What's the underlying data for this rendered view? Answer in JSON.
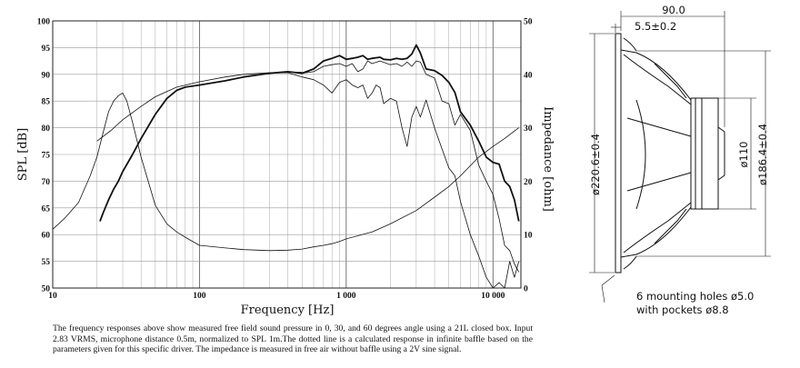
{
  "chart_data": {
    "type": "line",
    "xlabel": "Frequency [Hz]",
    "ylabel_left": "SPL [dB]",
    "ylabel_right": "Impedance [ohm]",
    "xscale": "log",
    "xlim": [
      10,
      15500
    ],
    "ylim_left": [
      50,
      100
    ],
    "ylim_right": [
      0,
      50
    ],
    "grid": true,
    "xticks": [
      {
        "value": 10,
        "label": "10"
      },
      {
        "value": 100,
        "label": "100"
      },
      {
        "value": 1000,
        "label": "1 000"
      },
      {
        "value": 10000,
        "label": "10 000"
      }
    ],
    "yticks_left": [
      "50",
      "55",
      "60",
      "65",
      "70",
      "75",
      "80",
      "85",
      "90",
      "95",
      "100"
    ],
    "yticks_right": [
      "0",
      "10",
      "20",
      "30",
      "40",
      "50"
    ],
    "series": [
      {
        "kind": "spl_0deg",
        "axis": "left",
        "width": 1.8,
        "x": [
          21,
          22,
          24,
          26,
          28,
          30,
          35,
          40,
          50,
          60,
          70,
          80,
          100,
          150,
          200,
          300,
          400,
          500,
          600,
          700,
          800,
          900,
          1000,
          1100,
          1200,
          1300,
          1400,
          1500,
          1700,
          1800,
          2000,
          2200,
          2400,
          2600,
          2800,
          3000,
          3200,
          3500,
          4000,
          4500,
          5000,
          5500,
          6000,
          7000,
          8000,
          9000,
          10000,
          11000,
          12000,
          13000,
          14000,
          15000
        ],
        "y": [
          62.5,
          64,
          66.5,
          68.5,
          70,
          71.8,
          75,
          78,
          82.5,
          85.5,
          87,
          87.6,
          88,
          88.8,
          89.5,
          90.2,
          90.5,
          90.2,
          91,
          92.5,
          93,
          93.5,
          92.8,
          93,
          93.2,
          93.5,
          92.8,
          93,
          93.2,
          92.8,
          92.7,
          93,
          92.8,
          93,
          93.8,
          95.5,
          94,
          91,
          90.7,
          89.8,
          88.5,
          86.6,
          83,
          80.5,
          77.5,
          74.5,
          73.5,
          73.2,
          70,
          69,
          66.5,
          62.5
        ]
      },
      {
        "kind": "spl_30deg",
        "axis": "left",
        "width": 0.8,
        "x": [
          100,
          150,
          200,
          300,
          400,
          500,
          600,
          700,
          800,
          900,
          1000,
          1100,
          1200,
          1300,
          1400,
          1500,
          1700,
          2000,
          2200,
          2400,
          2600,
          2800,
          3000,
          3200,
          3500,
          4000,
          4500,
          5000,
          5500,
          6000,
          7000,
          8000,
          9000,
          10000,
          11000,
          12000,
          13000,
          14000,
          15000
        ],
        "y": [
          88,
          88.8,
          89.5,
          90.2,
          90.5,
          90.2,
          90.5,
          91.5,
          91.8,
          92,
          91.5,
          92,
          90.5,
          91,
          92.5,
          92,
          92.5,
          91.8,
          92,
          91.5,
          92.3,
          91.5,
          92.5,
          92.3,
          90,
          89.3,
          85,
          84.5,
          80.5,
          82.5,
          79.5,
          73,
          70,
          67.5,
          63,
          58,
          57,
          54.5,
          53
        ]
      },
      {
        "kind": "spl_60deg",
        "axis": "left",
        "width": 0.8,
        "x": [
          100,
          150,
          200,
          300,
          400,
          500,
          600,
          700,
          800,
          900,
          1000,
          1100,
          1200,
          1300,
          1400,
          1500,
          1600,
          1700,
          1800,
          1900,
          2000,
          2200,
          2400,
          2600,
          2800,
          3000,
          3200,
          3500,
          4000,
          4500,
          5000,
          5500,
          6000,
          7000,
          8000,
          9000,
          10000,
          11000,
          12000,
          13000,
          14000,
          15000
        ],
        "y": [
          88,
          88.8,
          89.5,
          90.2,
          90.3,
          89.5,
          89,
          88,
          86.5,
          88.5,
          89,
          88,
          87.5,
          88,
          85.5,
          86.5,
          88,
          87.5,
          84.5,
          85,
          85.5,
          85,
          80,
          76.5,
          82,
          84,
          82,
          85.2,
          80,
          76,
          72.5,
          71,
          66.2,
          60,
          56,
          52,
          49,
          51,
          50,
          55,
          52,
          55
        ]
      },
      {
        "kind": "spl_infinite_baffle",
        "axis": "left",
        "width": 0.8,
        "x": [
          20,
          25,
          30,
          40,
          50,
          70,
          100,
          150,
          200,
          300,
          400,
          500
        ],
        "y": [
          77.5,
          79.5,
          81.5,
          84,
          85.8,
          87.6,
          88.6,
          89.5,
          90,
          90.3,
          90.4,
          90.4
        ]
      },
      {
        "kind": "impedance",
        "axis": "right",
        "width": 0.8,
        "x": [
          10,
          12,
          15,
          18,
          20,
          22,
          24,
          26,
          28,
          30,
          32,
          35,
          40,
          50,
          60,
          70,
          80,
          100,
          150,
          200,
          300,
          400,
          500,
          600,
          700,
          800,
          900,
          1000,
          1500,
          2000,
          3000,
          4000,
          5000,
          6000,
          8000,
          10000,
          12000,
          15000
        ],
        "y": [
          11,
          13,
          16,
          21,
          24.5,
          29,
          33,
          35,
          36,
          36.5,
          35,
          31,
          24.5,
          15.5,
          12,
          10.5,
          9.5,
          8,
          7.5,
          7.2,
          7,
          7.1,
          7.3,
          7.7,
          8,
          8.3,
          8.7,
          9.2,
          10.5,
          12,
          14.5,
          17,
          19,
          21,
          24.5,
          26.5,
          28,
          30
        ]
      }
    ]
  },
  "caption": [
    "The frequency responses above show measured free field sound pressure in 0, 30, and 60 degrees angle using a 21L closed box. Input 2.83 VRMS, microphone distance 0.5m, normalized to SPL 1m.The dotted line is a calculated response in infinite baffle based on the parameters given for this specific driver. The impedance is measured in free air without baffle using a 2V sine signal."
  ],
  "drawing": {
    "dim_depth": "90.0",
    "dim_flange": "5.5±0.2",
    "dim_outer": "ø220.6±0.4",
    "dim_magnet": "ø110",
    "dim_baffle": "ø186.4±0.4",
    "holes_line1": "6 mounting holes ø5.0",
    "holes_line2": "with pockets ø8.8"
  }
}
